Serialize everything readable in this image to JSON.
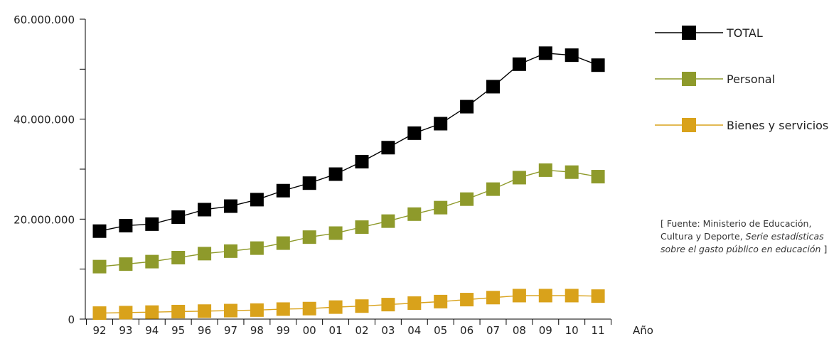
{
  "chart_data": {
    "type": "line",
    "categories": [
      "92",
      "93",
      "94",
      "95",
      "96",
      "97",
      "98",
      "99",
      "00",
      "01",
      "02",
      "03",
      "04",
      "05",
      "06",
      "07",
      "08",
      "09",
      "10",
      "11"
    ],
    "xlabel": "Año",
    "ylim": [
      0,
      60000000
    ],
    "yticks": [
      0,
      10000000,
      20000000,
      30000000,
      40000000,
      50000000,
      60000000
    ],
    "ytick_labels": [
      "0",
      "",
      "20.000.000",
      "",
      "40.000.000",
      "",
      "60.000.000"
    ],
    "legend_position": "top-right",
    "grid": false,
    "series": [
      {
        "name": "Bienes y servicios",
        "color": "#d9a21b",
        "values": [
          1200000,
          1300000,
          1400000,
          1500000,
          1600000,
          1700000,
          1800000,
          2000000,
          2100000,
          2400000,
          2600000,
          2900000,
          3200000,
          3500000,
          3900000,
          4300000,
          4700000,
          4700000,
          4700000,
          4600000
        ]
      },
      {
        "name": "Personal",
        "color": "#8e9a2b",
        "values": [
          10500000,
          11000000,
          11500000,
          12300000,
          13100000,
          13600000,
          14200000,
          15200000,
          16400000,
          17200000,
          18400000,
          19600000,
          21000000,
          22300000,
          24000000,
          26000000,
          28300000,
          29800000,
          29400000,
          28500000
        ]
      },
      {
        "name": "TOTAL",
        "color": "#000000",
        "values": [
          17600000,
          18700000,
          19000000,
          20400000,
          21900000,
          22600000,
          23900000,
          25700000,
          27200000,
          29000000,
          31500000,
          34300000,
          37200000,
          39100000,
          42500000,
          46500000,
          51000000,
          53200000,
          52800000,
          50800000
        ]
      }
    ]
  },
  "source_note": {
    "prefix": "[ Fuente: Ministerio de Educación, Cultura y Deporte, ",
    "italic": "Serie estadísticas sobre el gasto público en educación",
    "suffix": " ]"
  }
}
